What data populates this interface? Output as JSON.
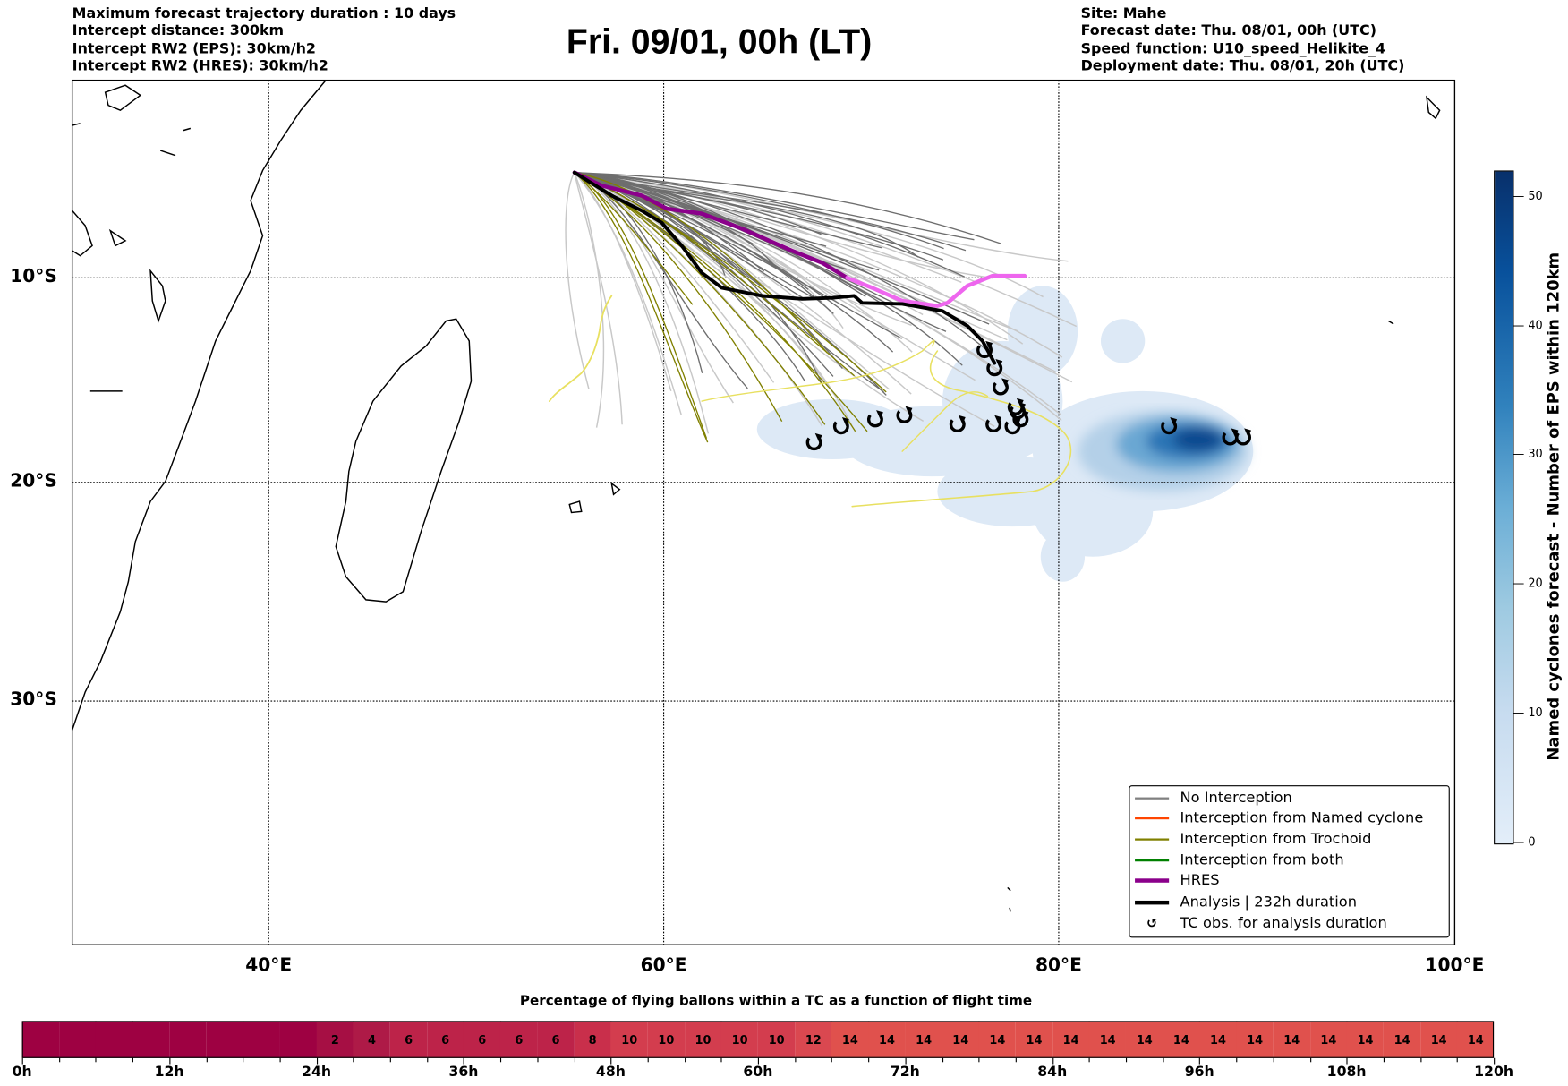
{
  "header": {
    "title": "Fri. 09/01, 00h (LT)",
    "left_info": [
      "Maximum forecast trajectory duration : 10 days",
      "Intercept distance: 300km",
      "Intercept RW2 (EPS):  30km/h2",
      "Intercept RW2 (HRES): 30km/h2"
    ],
    "right_info": [
      "Site: Mahe",
      "Forecast date: Thu. 08/01, 00h (UTC)",
      "Speed function: U10_speed_Helikite_4",
      "Deployment date: Thu. 08/01, 20h (UTC)"
    ]
  },
  "map": {
    "lat_labels": [
      "10°S",
      "20°S",
      "30°S"
    ],
    "lon_labels": [
      "40°E",
      "60°E",
      "80°E",
      "100°E"
    ]
  },
  "legend": {
    "items": [
      {
        "label": "No Interception",
        "color": "#808080",
        "style": "thin"
      },
      {
        "label": "Interception from Named cyclone",
        "color": "#ff4500",
        "style": "thin"
      },
      {
        "label": "Interception from Trochoid",
        "color": "#808000",
        "style": "thin"
      },
      {
        "label": "Interception from both",
        "color": "#008000",
        "style": "thin"
      },
      {
        "label": "HRES",
        "color": "#8b008b",
        "style": "thick"
      },
      {
        "label": "Analysis | 232h duration",
        "color": "#000000",
        "style": "thick"
      },
      {
        "label": "TC obs. for analysis duration",
        "color": "#000000",
        "style": "symbol"
      }
    ],
    "tc_symbol": "↺"
  },
  "colorbar": {
    "label": "Named cyclones forecast - Number of EPS within 120km",
    "ticks": [
      "0",
      "10",
      "20",
      "30",
      "40",
      "50"
    ],
    "range": [
      0,
      52
    ],
    "colors": [
      "#e3eef9",
      "#c6dbef",
      "#9ecae1",
      "#6baed6",
      "#3182bd",
      "#08519c",
      "#08306b"
    ]
  },
  "chart_data": {
    "type": "heatmap",
    "title": "Percentage of flying ballons within a TC as a function of flight time",
    "xlabel": "flight time",
    "x_ticks": [
      "0h",
      "12h",
      "24h",
      "36h",
      "48h",
      "60h",
      "72h",
      "84h",
      "96h",
      "108h",
      "120h"
    ],
    "xlim": [
      0,
      120
    ],
    "bin_hours": 3,
    "values": [
      0,
      0,
      0,
      0,
      0,
      0,
      0,
      0,
      2,
      4,
      6,
      6,
      6,
      6,
      6,
      8,
      10,
      10,
      10,
      10,
      10,
      12,
      14,
      14,
      14,
      14,
      14,
      14,
      14,
      14,
      14,
      14,
      14,
      14,
      14,
      14,
      14,
      14,
      14,
      14
    ],
    "value_colors": {
      "0": "#9e0142",
      "2": "#a60f44",
      "4": "#ae1a47",
      "6": "#bd2349",
      "8": "#c92f4b",
      "10": "#d33d4e",
      "12": "#da4850",
      "14": "#e0514d"
    }
  }
}
